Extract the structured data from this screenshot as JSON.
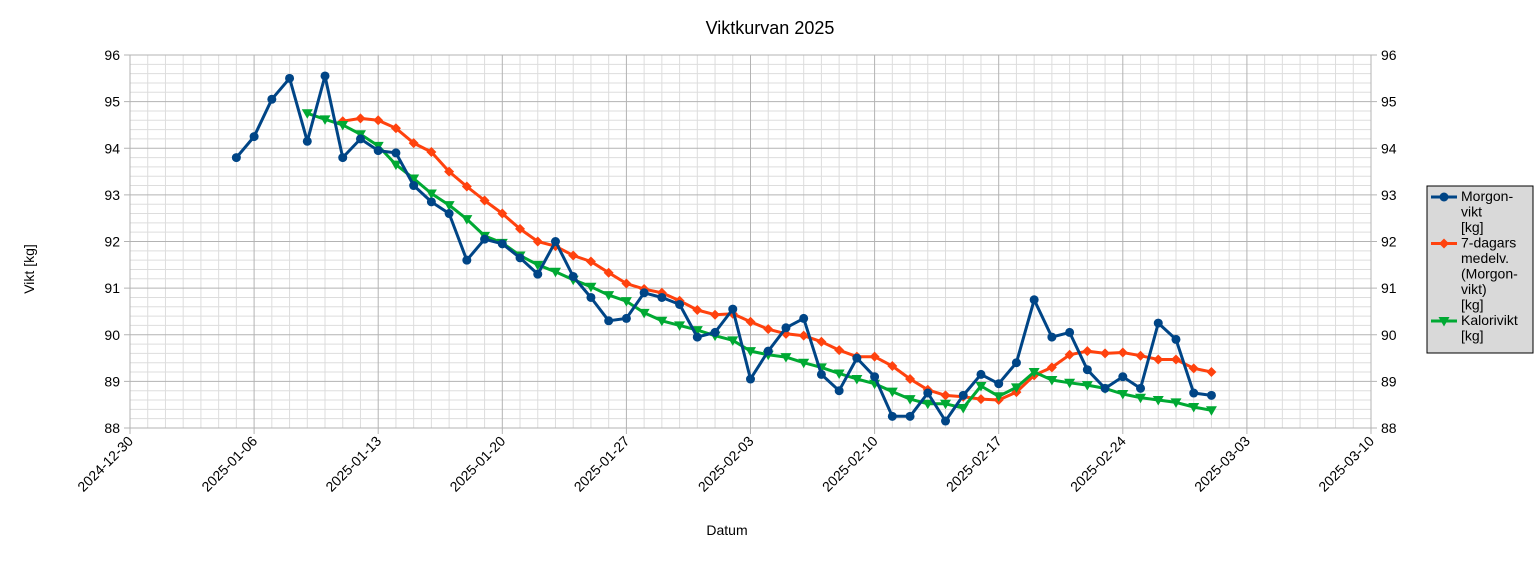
{
  "chart_data": {
    "type": "line",
    "title": "Viktkurvan 2025",
    "xlabel": "Datum",
    "ylabel": "Vikt [kg]",
    "ylim": [
      88,
      96
    ],
    "y_ticks": [
      88,
      89,
      90,
      91,
      92,
      93,
      94,
      95,
      96
    ],
    "xlim": [
      "2024-12-30",
      "2025-03-10"
    ],
    "x_ticks": [
      "2024-12-30",
      "2025-01-06",
      "2025-01-13",
      "2025-01-20",
      "2025-01-27",
      "2025-02-03",
      "2025-02-10",
      "2025-02-17",
      "2025-02-24",
      "2025-03-03",
      "2025-03-10"
    ],
    "grid": true,
    "secondary_y_axis": true,
    "legend_position": "right",
    "series": [
      {
        "name": "Morgon-vikt [kg]",
        "legend_lines": [
          "Morgon-",
          "vikt",
          "[kg]"
        ],
        "color": "#004586",
        "marker": "circle",
        "points": [
          [
            "2025-01-05",
            93.8
          ],
          [
            "2025-01-06",
            94.25
          ],
          [
            "2025-01-07",
            95.05
          ],
          [
            "2025-01-08",
            95.5
          ],
          [
            "2025-01-09",
            94.15
          ],
          [
            "2025-01-10",
            95.55
          ],
          [
            "2025-01-11",
            93.8
          ],
          [
            "2025-01-12",
            94.2
          ],
          [
            "2025-01-13",
            93.95
          ],
          [
            "2025-01-14",
            93.9
          ],
          [
            "2025-01-15",
            93.2
          ],
          [
            "2025-01-16",
            92.85
          ],
          [
            "2025-01-17",
            92.6
          ],
          [
            "2025-01-18",
            91.6
          ],
          [
            "2025-01-19",
            92.05
          ],
          [
            "2025-01-20",
            91.95
          ],
          [
            "2025-01-21",
            91.65
          ],
          [
            "2025-01-22",
            91.3
          ],
          [
            "2025-01-23",
            92.0
          ],
          [
            "2025-01-24",
            91.25
          ],
          [
            "2025-01-25",
            90.8
          ],
          [
            "2025-01-26",
            90.3
          ],
          [
            "2025-01-27",
            90.35
          ],
          [
            "2025-01-28",
            90.9
          ],
          [
            "2025-01-29",
            90.8
          ],
          [
            "2025-01-30",
            90.65
          ],
          [
            "2025-01-31",
            89.95
          ],
          [
            "2025-02-01",
            90.05
          ],
          [
            "2025-02-02",
            90.55
          ],
          [
            "2025-02-03",
            89.05
          ],
          [
            "2025-02-04",
            89.65
          ],
          [
            "2025-02-05",
            90.15
          ],
          [
            "2025-02-06",
            90.35
          ],
          [
            "2025-02-07",
            89.15
          ],
          [
            "2025-02-08",
            88.8
          ],
          [
            "2025-02-09",
            89.5
          ],
          [
            "2025-02-10",
            89.1
          ],
          [
            "2025-02-11",
            88.25
          ],
          [
            "2025-02-12",
            88.25
          ],
          [
            "2025-02-13",
            88.75
          ],
          [
            "2025-02-14",
            88.15
          ],
          [
            "2025-02-15",
            88.7
          ],
          [
            "2025-02-16",
            89.15
          ],
          [
            "2025-02-17",
            88.95
          ],
          [
            "2025-02-18",
            89.4
          ],
          [
            "2025-02-19",
            90.75
          ],
          [
            "2025-02-20",
            89.95
          ],
          [
            "2025-02-21",
            90.05
          ],
          [
            "2025-02-22",
            89.25
          ],
          [
            "2025-02-23",
            88.85
          ],
          [
            "2025-02-24",
            89.1
          ],
          [
            "2025-02-25",
            88.85
          ],
          [
            "2025-02-26",
            90.25
          ],
          [
            "2025-02-27",
            89.9
          ],
          [
            "2025-02-28",
            88.75
          ],
          [
            "2025-03-01",
            88.7
          ]
        ]
      },
      {
        "name": "7-dagars medelv. (Morgon-vikt) [kg]",
        "legend_lines": [
          "7-dagars",
          "medelv.",
          "(Morgon-",
          "vikt)",
          "[kg]"
        ],
        "color": "#ff420e",
        "marker": "diamond",
        "points": [
          [
            "2025-01-11",
            94.58
          ],
          [
            "2025-01-12",
            94.64
          ],
          [
            "2025-01-13",
            94.6
          ],
          [
            "2025-01-14",
            94.43
          ],
          [
            "2025-01-15",
            94.11
          ],
          [
            "2025-01-16",
            93.92
          ],
          [
            "2025-01-17",
            93.5
          ],
          [
            "2025-01-18",
            93.18
          ],
          [
            "2025-01-19",
            92.88
          ],
          [
            "2025-01-20",
            92.6
          ],
          [
            "2025-01-21",
            92.27
          ],
          [
            "2025-01-22",
            92.0
          ],
          [
            "2025-01-23",
            91.9
          ],
          [
            "2025-01-24",
            91.7
          ],
          [
            "2025-01-25",
            91.57
          ],
          [
            "2025-01-26",
            91.33
          ],
          [
            "2025-01-27",
            91.1
          ],
          [
            "2025-01-28",
            90.98
          ],
          [
            "2025-01-29",
            90.9
          ],
          [
            "2025-01-30",
            90.73
          ],
          [
            "2025-01-31",
            90.53
          ],
          [
            "2025-02-01",
            90.43
          ],
          [
            "2025-02-02",
            90.45
          ],
          [
            "2025-02-03",
            90.28
          ],
          [
            "2025-02-04",
            90.12
          ],
          [
            "2025-02-05",
            90.02
          ],
          [
            "2025-02-06",
            89.98
          ],
          [
            "2025-02-07",
            89.85
          ],
          [
            "2025-02-08",
            89.67
          ],
          [
            "2025-02-09",
            89.53
          ],
          [
            "2025-02-10",
            89.53
          ],
          [
            "2025-02-11",
            89.33
          ],
          [
            "2025-02-12",
            89.05
          ],
          [
            "2025-02-13",
            88.82
          ],
          [
            "2025-02-14",
            88.7
          ],
          [
            "2025-02-15",
            88.67
          ],
          [
            "2025-02-16",
            88.62
          ],
          [
            "2025-02-17",
            88.6
          ],
          [
            "2025-02-18",
            88.77
          ],
          [
            "2025-02-19",
            89.13
          ],
          [
            "2025-02-20",
            89.3
          ],
          [
            "2025-02-21",
            89.57
          ],
          [
            "2025-02-22",
            89.65
          ],
          [
            "2025-02-23",
            89.6
          ],
          [
            "2025-02-24",
            89.62
          ],
          [
            "2025-02-25",
            89.55
          ],
          [
            "2025-02-26",
            89.47
          ],
          [
            "2025-02-27",
            89.47
          ],
          [
            "2025-02-28",
            89.28
          ],
          [
            "2025-03-01",
            89.2
          ]
        ]
      },
      {
        "name": "Kalorivikt [kg]",
        "legend_lines": [
          "Kalorivikt",
          "[kg]"
        ],
        "color": "#00a933",
        "marker": "triangle-down",
        "points": [
          [
            "2025-01-09",
            94.75
          ],
          [
            "2025-01-10",
            94.62
          ],
          [
            "2025-01-11",
            94.5
          ],
          [
            "2025-01-12",
            94.3
          ],
          [
            "2025-01-13",
            94.05
          ],
          [
            "2025-01-14",
            93.65
          ],
          [
            "2025-01-15",
            93.35
          ],
          [
            "2025-01-16",
            93.03
          ],
          [
            "2025-01-17",
            92.78
          ],
          [
            "2025-01-18",
            92.48
          ],
          [
            "2025-01-19",
            92.12
          ],
          [
            "2025-01-20",
            91.97
          ],
          [
            "2025-01-21",
            91.7
          ],
          [
            "2025-01-22",
            91.5
          ],
          [
            "2025-01-23",
            91.35
          ],
          [
            "2025-01-24",
            91.18
          ],
          [
            "2025-01-25",
            91.03
          ],
          [
            "2025-01-26",
            90.85
          ],
          [
            "2025-01-27",
            90.72
          ],
          [
            "2025-01-28",
            90.47
          ],
          [
            "2025-01-29",
            90.3
          ],
          [
            "2025-01-30",
            90.2
          ],
          [
            "2025-01-31",
            90.1
          ],
          [
            "2025-02-01",
            89.98
          ],
          [
            "2025-02-02",
            89.88
          ],
          [
            "2025-02-03",
            89.65
          ],
          [
            "2025-02-04",
            89.57
          ],
          [
            "2025-02-05",
            89.52
          ],
          [
            "2025-02-06",
            89.4
          ],
          [
            "2025-02-07",
            89.3
          ],
          [
            "2025-02-08",
            89.17
          ],
          [
            "2025-02-09",
            89.05
          ],
          [
            "2025-02-10",
            88.95
          ],
          [
            "2025-02-11",
            88.78
          ],
          [
            "2025-02-12",
            88.62
          ],
          [
            "2025-02-13",
            88.52
          ],
          [
            "2025-02-14",
            88.52
          ],
          [
            "2025-02-15",
            88.43
          ],
          [
            "2025-02-16",
            88.9
          ],
          [
            "2025-02-17",
            88.68
          ],
          [
            "2025-02-18",
            88.87
          ],
          [
            "2025-02-19",
            89.2
          ],
          [
            "2025-02-20",
            89.03
          ],
          [
            "2025-02-21",
            88.97
          ],
          [
            "2025-02-22",
            88.92
          ],
          [
            "2025-02-23",
            88.85
          ],
          [
            "2025-02-24",
            88.73
          ],
          [
            "2025-02-25",
            88.65
          ],
          [
            "2025-02-26",
            88.6
          ],
          [
            "2025-02-27",
            88.55
          ],
          [
            "2025-02-28",
            88.45
          ],
          [
            "2025-03-01",
            88.38
          ]
        ]
      }
    ]
  }
}
